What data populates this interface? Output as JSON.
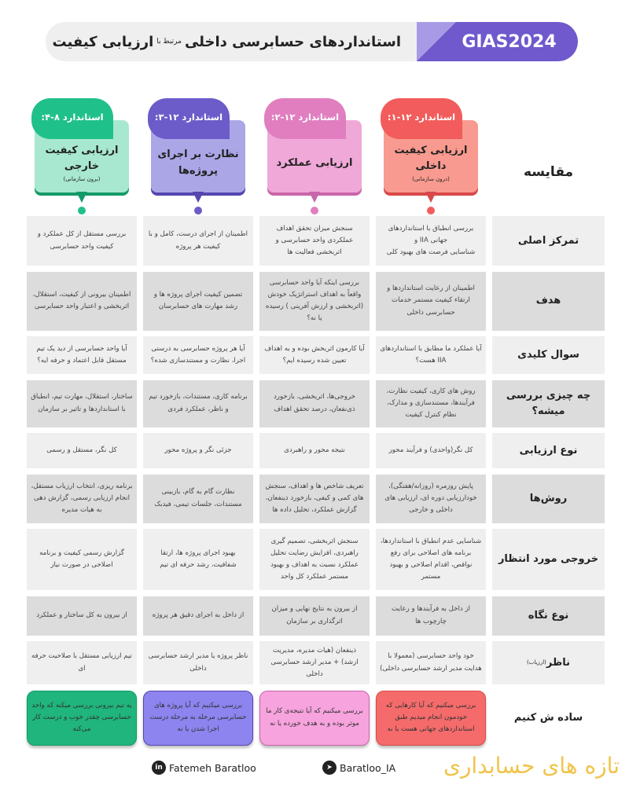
{
  "header": {
    "brand": "GIAS2024",
    "title_main": "استانداردهای حسابرسی داخلی",
    "title_small": "مرتبط با",
    "title_end": "ارزیابی کیفیت"
  },
  "comparison_label": "مقایسه",
  "colors": {
    "red": "#f25c5c",
    "pink": "#e07ec0",
    "purple": "#6b5cc9",
    "green": "#20c08a"
  },
  "standards": [
    {
      "tab": "استاندارد ۱۲-۱:",
      "title": "ارزیابی کیفیت داخلی",
      "note": "(درون سازمانی)"
    },
    {
      "tab": "استاندارد ۱۲-۲:",
      "title": "ارزیابی عملکرد",
      "note": ""
    },
    {
      "tab": "استاندارد ۱۲-۳:",
      "title": "نظارت بر اجرای پروژه‌ها",
      "note": ""
    },
    {
      "tab": "استاندارد ۸-۴:",
      "title": "ارزیابی کیفیت خارجی",
      "note": "(برون سازمانی)"
    }
  ],
  "rows": [
    {
      "label": "تمرکز اصلی",
      "cells": [
        "بررسی انطباق با استانداردهای جهانی IIA و\nشناسایی فرصت های بهبود کلی",
        "سنجش میزان تحقق اهداف عملکردی واحد حسابرسی و اثربخشی فعالیت ها",
        "اطمینان از اجرای درست، کامل و با کیفیت هر پروژه",
        "بررسی مستقل از کل عملکرد و کیفیت واحد حسابرسی"
      ]
    },
    {
      "label": "هدف",
      "cells": [
        "اطمینان از رعایت استانداردها و ارتقاء کیفیت مستمر خدمات حسابرسی داخلی",
        "بررسی اینکه آیا واحد حسابرسی واقعاً به اهداف استراتژیک خودش (اثربخشی و ارزش آفرینی ) رسیده یا نه؟",
        "تضمین کیفیت اجرای پروژه ها و رشد مهارت های حسابرسان",
        "اطمینان بیرونی از کیفیت، استقلال، اثربخشی و اعتبار واحد حسابرسی"
      ]
    },
    {
      "label": "سوال کلیدی",
      "cells": [
        "آیا عملکرد ما مطابق با استانداردهای IIA هست؟",
        "آیا کارمون اثربخش بوده و به اهداف تعیین شده رسیده ایم؟",
        "آیا هر پروژه حسابرسی به درستی اجرا، نظارت و مستندسازی شده؟",
        "آیا واحد حسابرسی از دید یک تیم مستقل قابل اعتماد و حرفه ایه؟"
      ]
    },
    {
      "label": "چه چیزی بررسی میشه؟",
      "cells": [
        "روش های کاری، کیفیت نظارت، فرآیندها، مستندسازی و مدارک، نظام کنترل کیفیت",
        "خروجی‌ها، اثربخشی، بازخورد ذی‌نفعان، درصد تحقق اهداف",
        "برنامه کاری، مستندات، بازخورد تیم و ناظر، عملکرد فردی",
        "ساختار، استقلال، مهارت تیم، انطباق با استانداردها و تاثیر بر سازمان"
      ]
    },
    {
      "label": "نوع ارزیابی",
      "cells": [
        "کل نگر(واحدی) و فرآیند محور",
        "نتیجه محور و راهبردی",
        "جزئی نگر و پروژه محور",
        "کل نگر، مستقل و رسمی"
      ]
    },
    {
      "label": "روش‌ها",
      "cells": [
        "پایش روزمره (روزانه/هفتگی)، خودارزیابی دوره ای، ارزیابی های داخلی و خارجی",
        "تعریف شاخص ها و اهداف، سنجش های کمی و کیفی، بازخورد ذینفعان، گزارش عملکرد، تحلیل داده ها",
        "نظارت گام به گام، بازبینی مستندات، جلسات تیمی، فیدبک",
        "برنامه ریزی، انتخاب ارزیاب مستقل، انجام ارزیابی رسمی، گزارش دهی به هیات مدیره"
      ]
    },
    {
      "label": "خروجی مورد انتظار",
      "cells": [
        "شناسایی عدم انطباق با استانداردها، برنامه های اصلاحی برای رفع نواقص، اقدام اصلاحی و بهبود مستمر",
        "سنجش اثربخشی، تصمیم گیری راهبردی، افزایش رضایت تحلیل عملکرد نسبت به اهداف و بهبود مستمر عملکرد کل واحد",
        "بهبود اجرای پروژه ها، ارتقا شفافیت، رشد حرفه ای تیم",
        "گزارش رسمی کیفیت و برنامه اصلاحی در صورت نیاز"
      ]
    },
    {
      "label": "نوع نگاه",
      "cells": [
        "از داخل به فرآیندها و رعایت چارچوب ها",
        "از بیرون به نتایج نهایی و میزان اثرگذاری بر سازمان",
        "از داخل به اجرای دقیق هر پروژه",
        "از بیرون به کل ساختار و عملکرد"
      ]
    },
    {
      "label": "ناظر",
      "label_note": "(ارزیاب)",
      "cells": [
        "خود واحد حسابرسی (معمولا با هدایت مدیر ارشد حسابرسی داخلی)",
        "ذینفعان (هیات مدیره، مدیریت ارشد) + مدیر ارشد حسابرسی داخلی",
        "ناظر پروژه یا مدیر ارشد حسابرسی داخلی",
        "تیم ارزیابی مستقل با صلاحیت حرفه ای"
      ]
    },
    {
      "label": "ساده ش کنیم",
      "cells": [
        "بررسی میکنیم که آیا کارهایی که خودمون انجام میدیم طبق استانداردهای جهانی هست یا نه",
        "بررسی میکنیم که آیا نتیجه‌ی کار ما موثر بوده و به هدف خورده یا نه",
        "بررسی میکنیم که آیا پروژه های حسابرسی مرحله به مرحله درست اجرا شدن یا نه",
        "یه تیم بیرونی بررسی میکنه که واحد حسابرسی چقدر خوب و درست کار می‌کنه"
      ]
    }
  ],
  "footer": {
    "linkedin": "Fatemeh Baratloo",
    "telegram": "Baratloo_IA",
    "brand": "تازه های حسابداری"
  }
}
